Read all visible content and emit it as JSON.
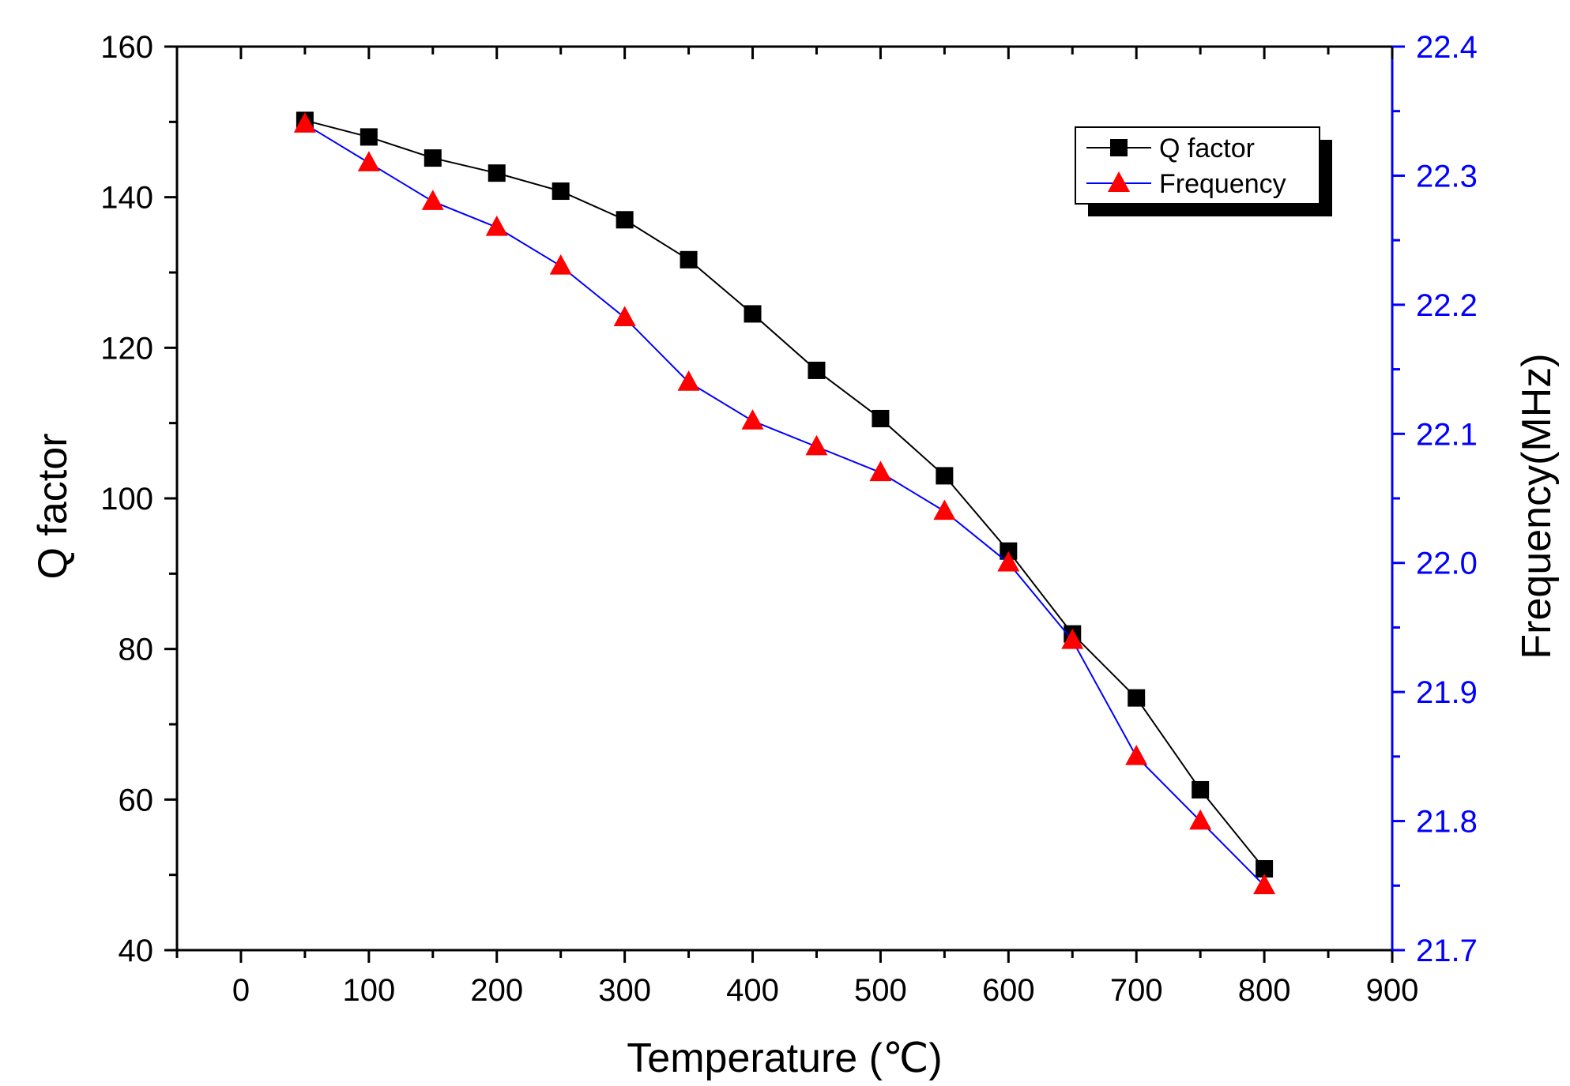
{
  "chart_data": {
    "type": "line",
    "x_label": "Temperature (℃)",
    "y_label_left": "Q factor",
    "y_label_right": "Frequency(MHz)",
    "x_range": [
      -50,
      900
    ],
    "y_left_range": [
      40,
      160
    ],
    "y_right_range": [
      21.7,
      22.4
    ],
    "x_ticks": [
      "0",
      "100",
      "200",
      "300",
      "400",
      "500",
      "600",
      "700",
      "800",
      "900"
    ],
    "y_left_ticks": [
      "40",
      "60",
      "80",
      "100",
      "120",
      "140",
      "160"
    ],
    "y_right_ticks": [
      "21.7",
      "21.8",
      "21.9",
      "22.0",
      "22.1",
      "22.2",
      "22.3",
      "22.4"
    ],
    "series": [
      {
        "name": "Q factor",
        "axis": "left",
        "color": "#000000",
        "marker": "square",
        "x": [
          50,
          100,
          150,
          200,
          250,
          300,
          350,
          400,
          450,
          500,
          550,
          600,
          650,
          700,
          750,
          800
        ],
        "values": [
          150.2,
          148,
          145.2,
          143.2,
          140.8,
          137,
          131.7,
          124.5,
          117,
          110.6,
          103,
          93,
          82,
          73.5,
          61.3,
          50.8
        ]
      },
      {
        "name": "Frequency",
        "axis": "right",
        "color": "#0000ff",
        "marker_color": "#ff0000",
        "marker": "triangle",
        "x": [
          50,
          100,
          150,
          200,
          250,
          300,
          350,
          400,
          450,
          500,
          550,
          600,
          650,
          700,
          750,
          800
        ],
        "values": [
          22.34,
          22.31,
          22.28,
          22.26,
          22.23,
          22.19,
          22.14,
          22.11,
          22.09,
          22.07,
          22.04,
          22.0,
          21.94,
          21.85,
          21.8,
          21.75
        ]
      }
    ],
    "legend_position": "top-right"
  }
}
